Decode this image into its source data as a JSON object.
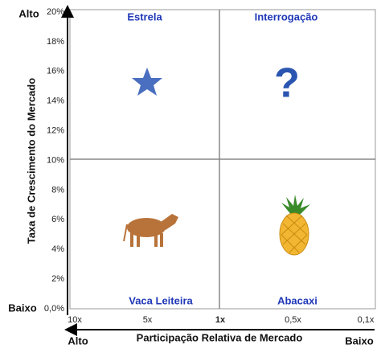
{
  "y_axis": {
    "title": "Taxa de Crescimento do Mercado",
    "high": "Alto",
    "low": "Baixo",
    "ticks": [
      "20%",
      "18%",
      "16%",
      "14%",
      "12%",
      "10%",
      "8%",
      "6%",
      "4%",
      "2%",
      "0,0%"
    ]
  },
  "x_axis": {
    "title": "Participação Relativa de Mercado",
    "high": "Alto",
    "low": "Baixo",
    "ticks": [
      "10x",
      "5x",
      "1x",
      "0,5x",
      "0,1x"
    ]
  },
  "quadrants": [
    {
      "label": "Estrela"
    },
    {
      "label": "Interrogação"
    },
    {
      "label": "Vaca Leiteira"
    },
    {
      "label": "Abacaxi"
    }
  ]
}
